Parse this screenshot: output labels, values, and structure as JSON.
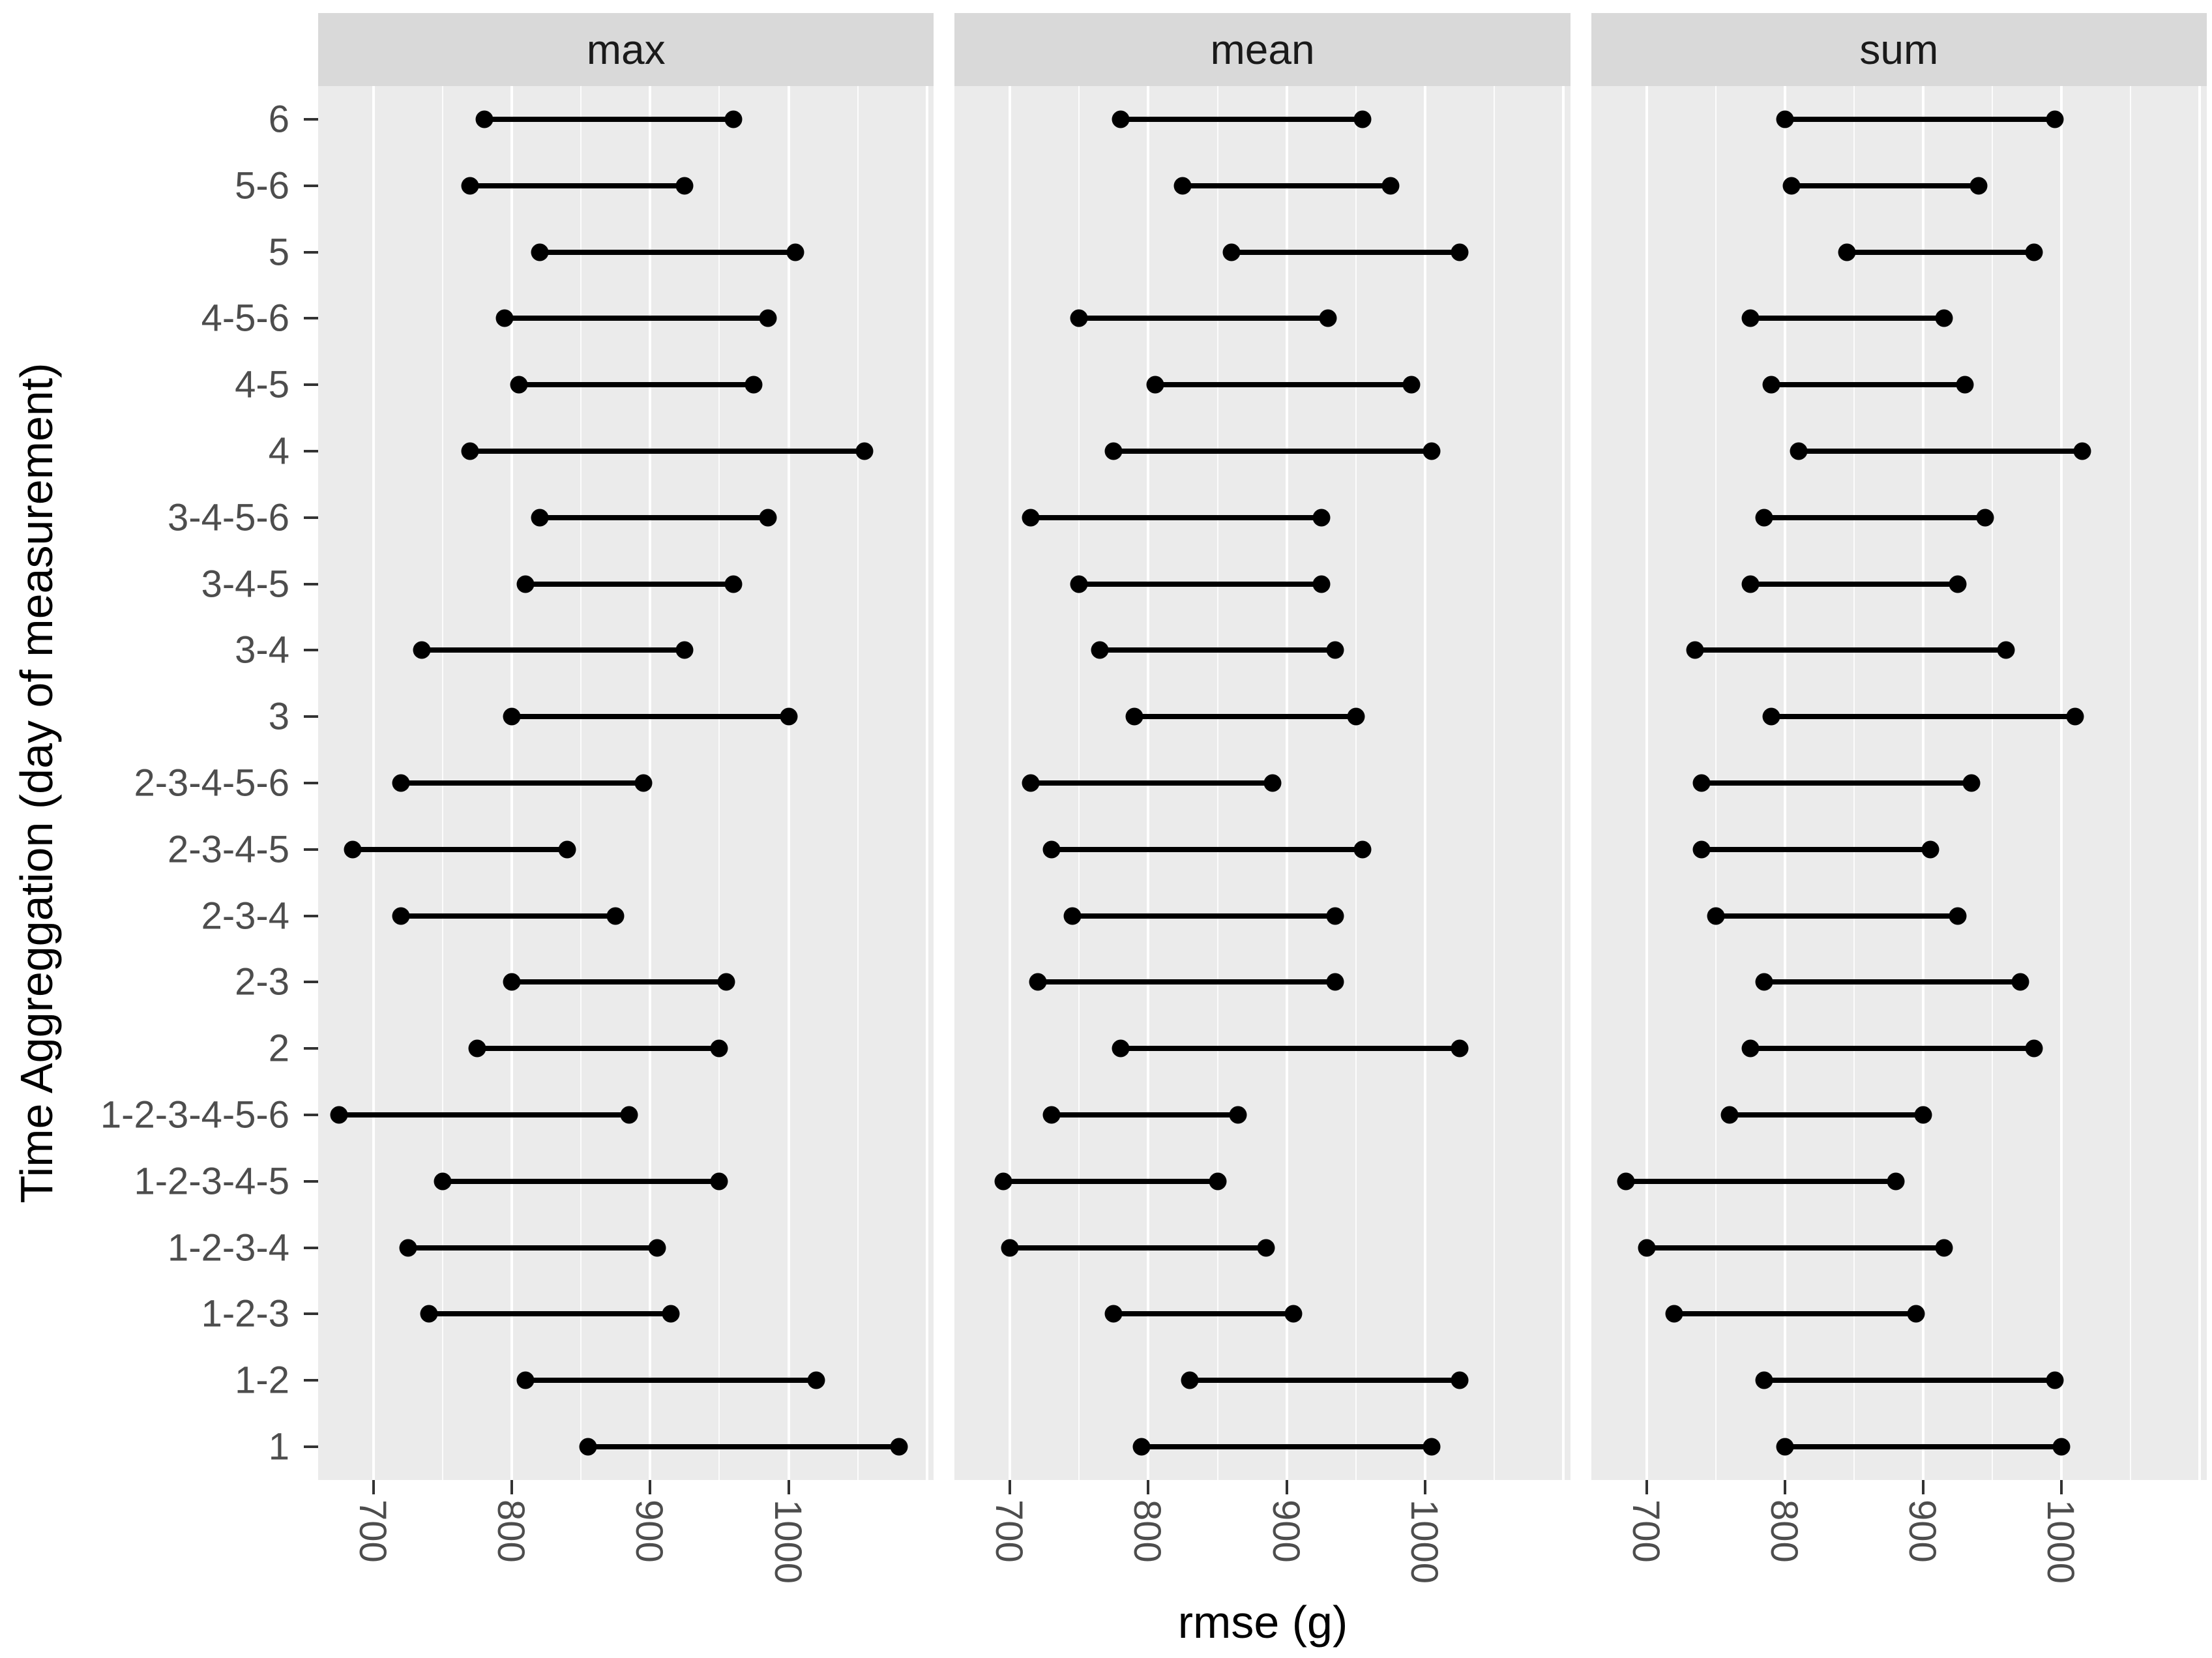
{
  "figure": {
    "kind": "faceted dumbbell range plot",
    "background_color": "#FFFFFF",
    "panel_background_color": "#EBEBEB",
    "strip_background_color": "#D9D9D9",
    "gridline_color": "#FFFFFF",
    "data_color": "#000000",
    "tick_text_color": "#4D4D4D",
    "strip_text_color": "#1A1A1A"
  },
  "chart_data": {
    "type": "dumbbell",
    "title": "",
    "xlabel": "rmse (g)",
    "ylabel": "Time Aggreggation (day of measurement)",
    "facets": [
      "max",
      "mean",
      "sum"
    ],
    "legend": "none",
    "grid": "on",
    "xlim": [
      660,
      1105
    ],
    "x_ticks": [
      700,
      800,
      900,
      1000
    ],
    "x_tick_labels": [
      "700",
      "800",
      "900",
      "1000"
    ],
    "gridlines_major": [
      700,
      800,
      900,
      1000,
      1100
    ],
    "gridlines_minor": [
      750,
      850,
      950,
      1050
    ],
    "categories": [
      "6",
      "5-6",
      "5",
      "4-5-6",
      "4-5",
      "4",
      "3-4-5-6",
      "3-4-5",
      "3-4",
      "3",
      "2-3-4-5-6",
      "2-3-4-5",
      "2-3-4",
      "2-3",
      "2",
      "1-2-3-4-5-6",
      "1-2-3-4-5",
      "1-2-3-4",
      "1-2-3",
      "1-2",
      "1"
    ],
    "series": {
      "max": [
        [
          780,
          960
        ],
        [
          770,
          925
        ],
        [
          820,
          1005
        ],
        [
          795,
          985
        ],
        [
          805,
          975
        ],
        [
          770,
          1055
        ],
        [
          820,
          985
        ],
        [
          810,
          960
        ],
        [
          735,
          925
        ],
        [
          800,
          1000
        ],
        [
          720,
          895
        ],
        [
          685,
          840
        ],
        [
          720,
          875
        ],
        [
          800,
          955
        ],
        [
          775,
          950
        ],
        [
          675,
          885
        ],
        [
          750,
          950
        ],
        [
          725,
          905
        ],
        [
          740,
          915
        ],
        [
          810,
          1020
        ],
        [
          855,
          1080
        ]
      ],
      "mean": [
        [
          780,
          955
        ],
        [
          825,
          975
        ],
        [
          860,
          1025
        ],
        [
          750,
          930
        ],
        [
          805,
          990
        ],
        [
          775,
          1005
        ],
        [
          715,
          925
        ],
        [
          750,
          925
        ],
        [
          765,
          935
        ],
        [
          790,
          950
        ],
        [
          715,
          890
        ],
        [
          730,
          955
        ],
        [
          745,
          935
        ],
        [
          720,
          935
        ],
        [
          780,
          1025
        ],
        [
          730,
          865
        ],
        [
          695,
          850
        ],
        [
          700,
          885
        ],
        [
          775,
          905
        ],
        [
          830,
          1025
        ],
        [
          795,
          1005
        ]
      ],
      "sum": [
        [
          800,
          995
        ],
        [
          805,
          940
        ],
        [
          845,
          980
        ],
        [
          775,
          915
        ],
        [
          790,
          930
        ],
        [
          810,
          1015
        ],
        [
          785,
          945
        ],
        [
          775,
          925
        ],
        [
          735,
          960
        ],
        [
          790,
          1010
        ],
        [
          740,
          935
        ],
        [
          740,
          905
        ],
        [
          750,
          925
        ],
        [
          785,
          970
        ],
        [
          775,
          980
        ],
        [
          760,
          900
        ],
        [
          685,
          880
        ],
        [
          700,
          915
        ],
        [
          720,
          895
        ],
        [
          785,
          995
        ],
        [
          800,
          1000
        ]
      ]
    }
  }
}
